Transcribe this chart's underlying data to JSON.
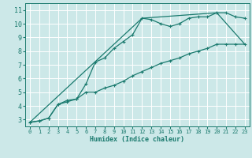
{
  "bg_color": "#cce8e8",
  "grid_color": "#ffffff",
  "line_color": "#1a7a6e",
  "xlabel": "Humidex (Indice chaleur)",
  "xlim": [
    -0.5,
    23.5
  ],
  "ylim": [
    2.5,
    11.5
  ],
  "xticks": [
    0,
    1,
    2,
    3,
    4,
    5,
    6,
    7,
    8,
    9,
    10,
    11,
    12,
    13,
    14,
    15,
    16,
    17,
    18,
    19,
    20,
    21,
    22,
    23
  ],
  "yticks": [
    3,
    4,
    5,
    6,
    7,
    8,
    9,
    10,
    11
  ],
  "series1_x": [
    0,
    1,
    2,
    3,
    4,
    5,
    6,
    7,
    8,
    9,
    10,
    11,
    12,
    13,
    14,
    15,
    16,
    17,
    18,
    19,
    20,
    21,
    22,
    23
  ],
  "series1_y": [
    2.8,
    2.9,
    3.1,
    4.1,
    4.4,
    4.5,
    5.6,
    7.2,
    7.5,
    8.2,
    8.7,
    9.2,
    10.4,
    10.3,
    10.0,
    9.8,
    10.0,
    10.4,
    10.5,
    10.5,
    10.8,
    10.8,
    10.5,
    10.4
  ],
  "series2_x": [
    0,
    1,
    2,
    3,
    4,
    5,
    6,
    7,
    8,
    9,
    10,
    11,
    12,
    13,
    14,
    15,
    16,
    17,
    18,
    19,
    20,
    21,
    22,
    23
  ],
  "series2_y": [
    2.8,
    2.9,
    3.1,
    4.1,
    4.3,
    4.5,
    5.0,
    5.0,
    5.3,
    5.5,
    5.8,
    6.2,
    6.5,
    6.8,
    7.1,
    7.3,
    7.5,
    7.8,
    8.0,
    8.2,
    8.5,
    8.5,
    8.5,
    8.5
  ],
  "series3_x": [
    0,
    12,
    20,
    23
  ],
  "series3_y": [
    2.8,
    10.4,
    10.8,
    8.5
  ]
}
